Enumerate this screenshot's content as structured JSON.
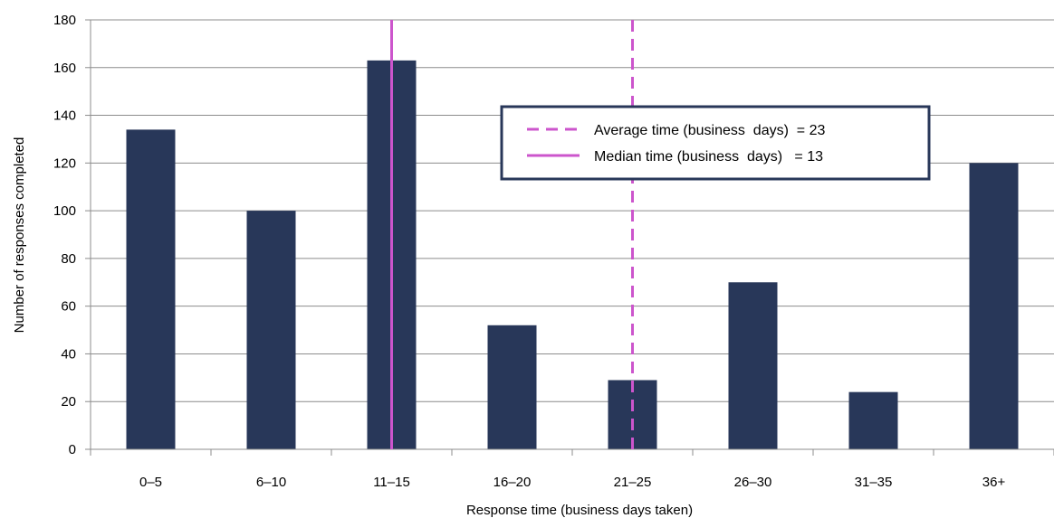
{
  "chart_data": {
    "type": "bar",
    "title": "",
    "xlabel": "Response time (business days taken)",
    "ylabel": "Number  of responses completed",
    "ylim": [
      0,
      180
    ],
    "yticks": [
      0,
      20,
      40,
      60,
      80,
      100,
      120,
      140,
      160,
      180
    ],
    "grid": true,
    "categories": [
      "0–5",
      "6–10",
      "11–15",
      "16–20",
      "21–25",
      "26–30",
      "31–35",
      "36+"
    ],
    "values": [
      134,
      100,
      163,
      52,
      29,
      70,
      24,
      120
    ],
    "bar_color": "#283759",
    "reference_lines": [
      {
        "label": "Average time (business  days)  = 23",
        "x_value": 23,
        "style": "dashed",
        "color": "#cc55cc"
      },
      {
        "label": "Median time (business  days)   = 13",
        "x_value": 13,
        "style": "solid",
        "color": "#cc55cc"
      }
    ],
    "legend_placement": "top-right"
  }
}
